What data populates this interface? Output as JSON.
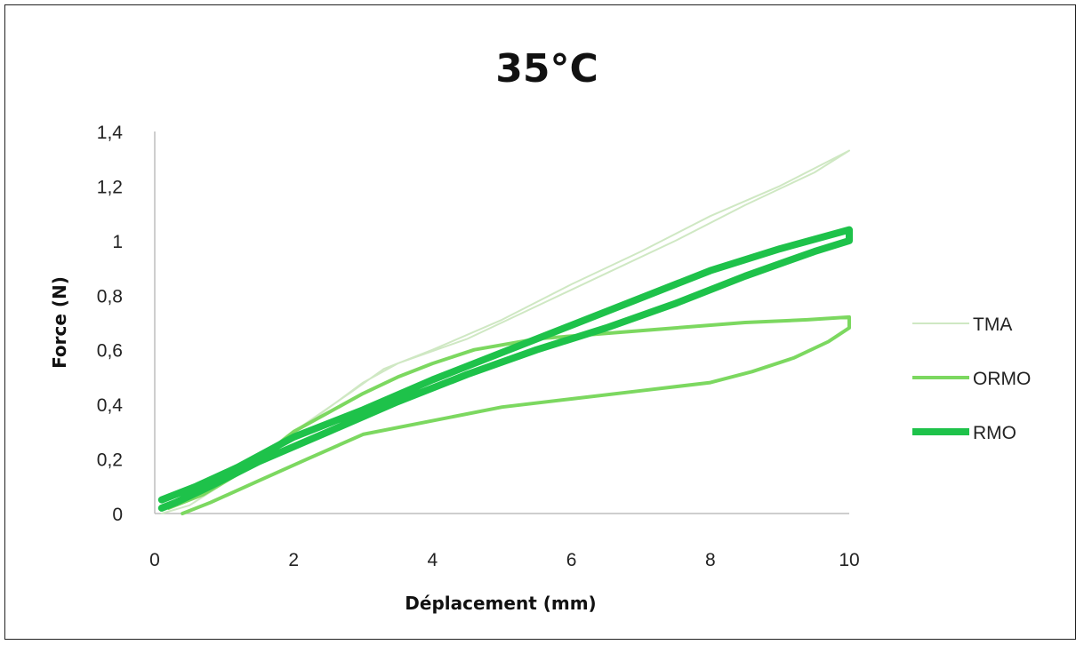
{
  "chart_data": {
    "type": "line",
    "title": "35°C",
    "xlabel": "Déplacement (mm)",
    "ylabel": "Force (N)",
    "xlim": [
      0,
      10
    ],
    "ylim": [
      0,
      1.4
    ],
    "x_ticks": [
      "0",
      "2",
      "4",
      "6",
      "8",
      "10"
    ],
    "y_ticks": [
      "0",
      "0,2",
      "0,4",
      "0,6",
      "0,8",
      "1",
      "1,2",
      "1,4"
    ],
    "grid": false,
    "legend_position": "right",
    "series": [
      {
        "name": "TMA",
        "color": "#cfe8c3",
        "style": "thin",
        "points": [
          [
            0.1,
            0.02
          ],
          [
            0.6,
            0.06
          ],
          [
            1.2,
            0.15
          ],
          [
            2,
            0.3
          ],
          [
            2.8,
            0.44
          ],
          [
            3.3,
            0.53
          ],
          [
            4,
            0.6
          ],
          [
            5,
            0.71
          ],
          [
            6,
            0.84
          ],
          [
            7,
            0.96
          ],
          [
            8,
            1.09
          ],
          [
            9,
            1.2
          ],
          [
            10,
            1.33
          ],
          [
            9.5,
            1.25
          ],
          [
            8.5,
            1.13
          ],
          [
            7.5,
            1.0
          ],
          [
            6.5,
            0.88
          ],
          [
            5.5,
            0.76
          ],
          [
            4.5,
            0.64
          ],
          [
            3.5,
            0.55
          ],
          [
            3,
            0.48
          ],
          [
            2.2,
            0.33
          ],
          [
            1.3,
            0.16
          ],
          [
            0.5,
            0.03
          ],
          [
            0.1,
            0.0
          ]
        ]
      },
      {
        "name": "ORMO",
        "color": "#7cd860",
        "style": "medium",
        "points": [
          [
            0.2,
            0.02
          ],
          [
            0.7,
            0.07
          ],
          [
            1.3,
            0.16
          ],
          [
            2,
            0.3
          ],
          [
            2.5,
            0.37
          ],
          [
            3,
            0.44
          ],
          [
            3.5,
            0.5
          ],
          [
            4,
            0.55
          ],
          [
            4.6,
            0.6
          ],
          [
            5.5,
            0.64
          ],
          [
            6.5,
            0.66
          ],
          [
            7.5,
            0.68
          ],
          [
            8.5,
            0.7
          ],
          [
            9.4,
            0.71
          ],
          [
            10,
            0.72
          ],
          [
            10,
            0.68
          ],
          [
            9.7,
            0.63
          ],
          [
            9.2,
            0.57
          ],
          [
            8.6,
            0.52
          ],
          [
            8,
            0.48
          ],
          [
            7,
            0.45
          ],
          [
            6,
            0.42
          ],
          [
            5,
            0.39
          ],
          [
            4,
            0.34
          ],
          [
            3,
            0.29
          ],
          [
            2.2,
            0.2
          ],
          [
            1.5,
            0.12
          ],
          [
            0.8,
            0.04
          ],
          [
            0.4,
            0.0
          ]
        ]
      },
      {
        "name": "RMO",
        "color": "#1ec24a",
        "style": "thick",
        "points": [
          [
            0.1,
            0.05
          ],
          [
            0.6,
            0.1
          ],
          [
            1.2,
            0.17
          ],
          [
            2,
            0.28
          ],
          [
            3,
            0.38
          ],
          [
            4,
            0.49
          ],
          [
            5,
            0.59
          ],
          [
            6,
            0.69
          ],
          [
            7,
            0.79
          ],
          [
            8,
            0.89
          ],
          [
            9,
            0.97
          ],
          [
            10,
            1.04
          ],
          [
            10,
            1.0
          ],
          [
            9.5,
            0.96
          ],
          [
            8.5,
            0.87
          ],
          [
            7.5,
            0.77
          ],
          [
            6.5,
            0.68
          ],
          [
            5.5,
            0.6
          ],
          [
            4.5,
            0.51
          ],
          [
            3.5,
            0.41
          ],
          [
            2.5,
            0.3
          ],
          [
            1.5,
            0.19
          ],
          [
            0.8,
            0.1
          ],
          [
            0.3,
            0.04
          ],
          [
            0.1,
            0.02
          ]
        ]
      }
    ]
  }
}
